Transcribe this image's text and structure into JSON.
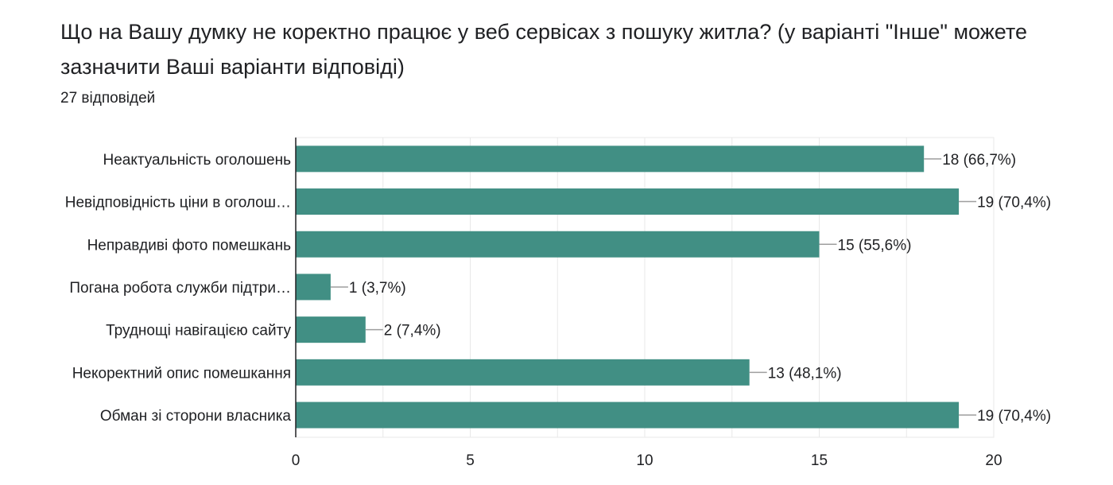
{
  "header": {
    "question": "Що на Вашу думку не коректно працює у веб сервісах з пошуку житла? (у варіанті \"Інше\" можете зазначити Ваші варіанти відповіді)",
    "responses": "27 відповідей"
  },
  "chart_data": {
    "type": "bar",
    "orientation": "horizontal",
    "categories": [
      "Неактуальність оголошень",
      "Невідповідність ціни в оголош…",
      "Неправдиві фото помешкань",
      "Погана робота служби підтри…",
      "Труднощі навігацією сайту",
      "Некоректний опис помешкання",
      "Обман зі сторони власника"
    ],
    "values": [
      18,
      19,
      15,
      1,
      2,
      13,
      19
    ],
    "value_labels": [
      "18 (66,7%)",
      "19 (70,4%)",
      "15 (55,6%)",
      "1 (3,7%)",
      "2 (7,4%)",
      "13 (48,1%)",
      "19 (70,4%)"
    ],
    "xlim": [
      0,
      20
    ],
    "xticks": [
      0,
      5,
      10,
      15,
      20
    ],
    "grid": true,
    "bar_color": "#418f84",
    "grid_color": "#e8e8e8",
    "axis_color": "#202124",
    "leader_color": "#9e9e9e"
  }
}
